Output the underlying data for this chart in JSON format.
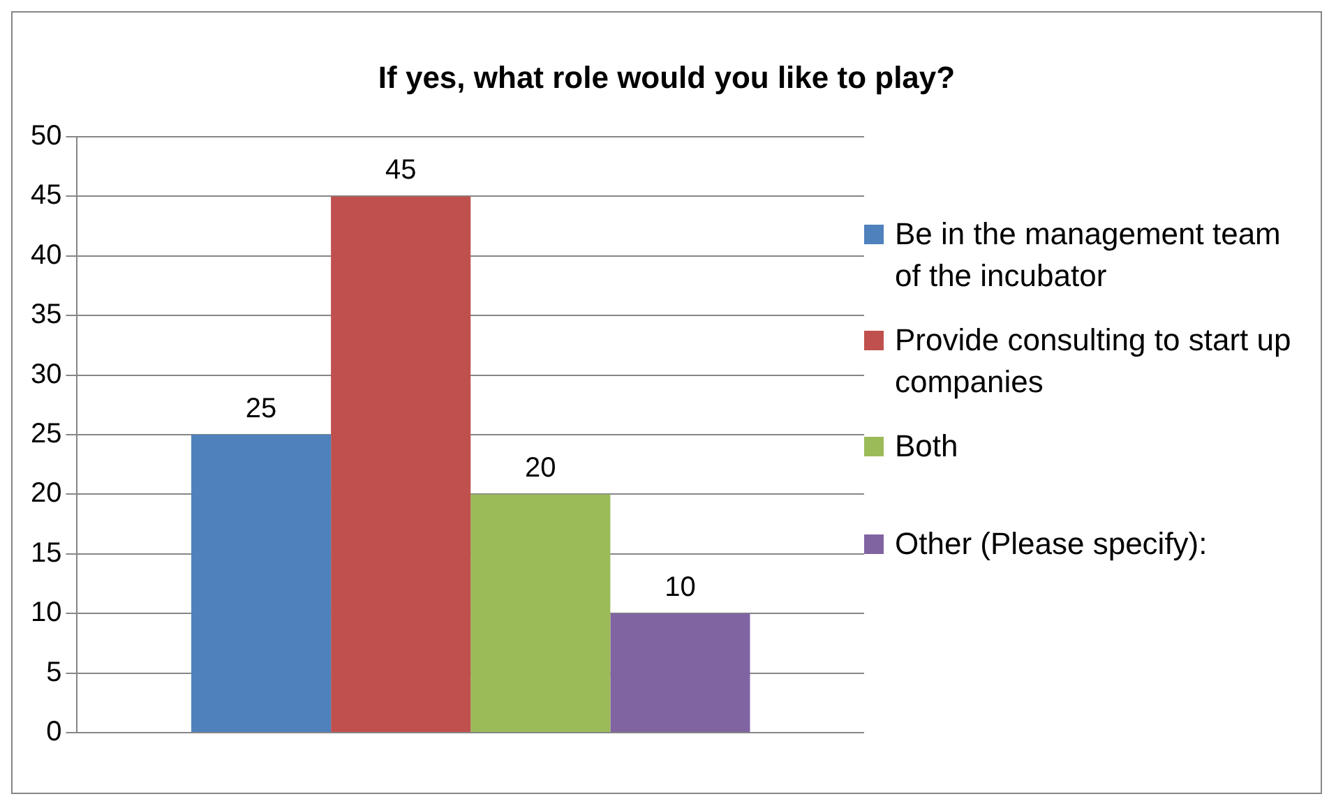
{
  "chart_data": {
    "type": "bar",
    "title": "If yes, what role would you like to play?",
    "categories": [
      null
    ],
    "series": [
      {
        "name": "Be in the management team of the incubator",
        "color": "#4f81bd",
        "values": [
          25
        ]
      },
      {
        "name": "Provide consulting to start up companies",
        "color": "#c0504d",
        "values": [
          45
        ]
      },
      {
        "name": "Both",
        "color": "#9bbb59",
        "values": [
          20
        ]
      },
      {
        "name": "Other (Please specify):",
        "color": "#8064a2",
        "values": [
          10
        ]
      }
    ],
    "ylim": [
      0,
      50
    ],
    "yticks": [
      0,
      5,
      10,
      15,
      20,
      25,
      30,
      35,
      40,
      45,
      50
    ],
    "grid": "y",
    "legend": "right",
    "data_labels": true
  }
}
